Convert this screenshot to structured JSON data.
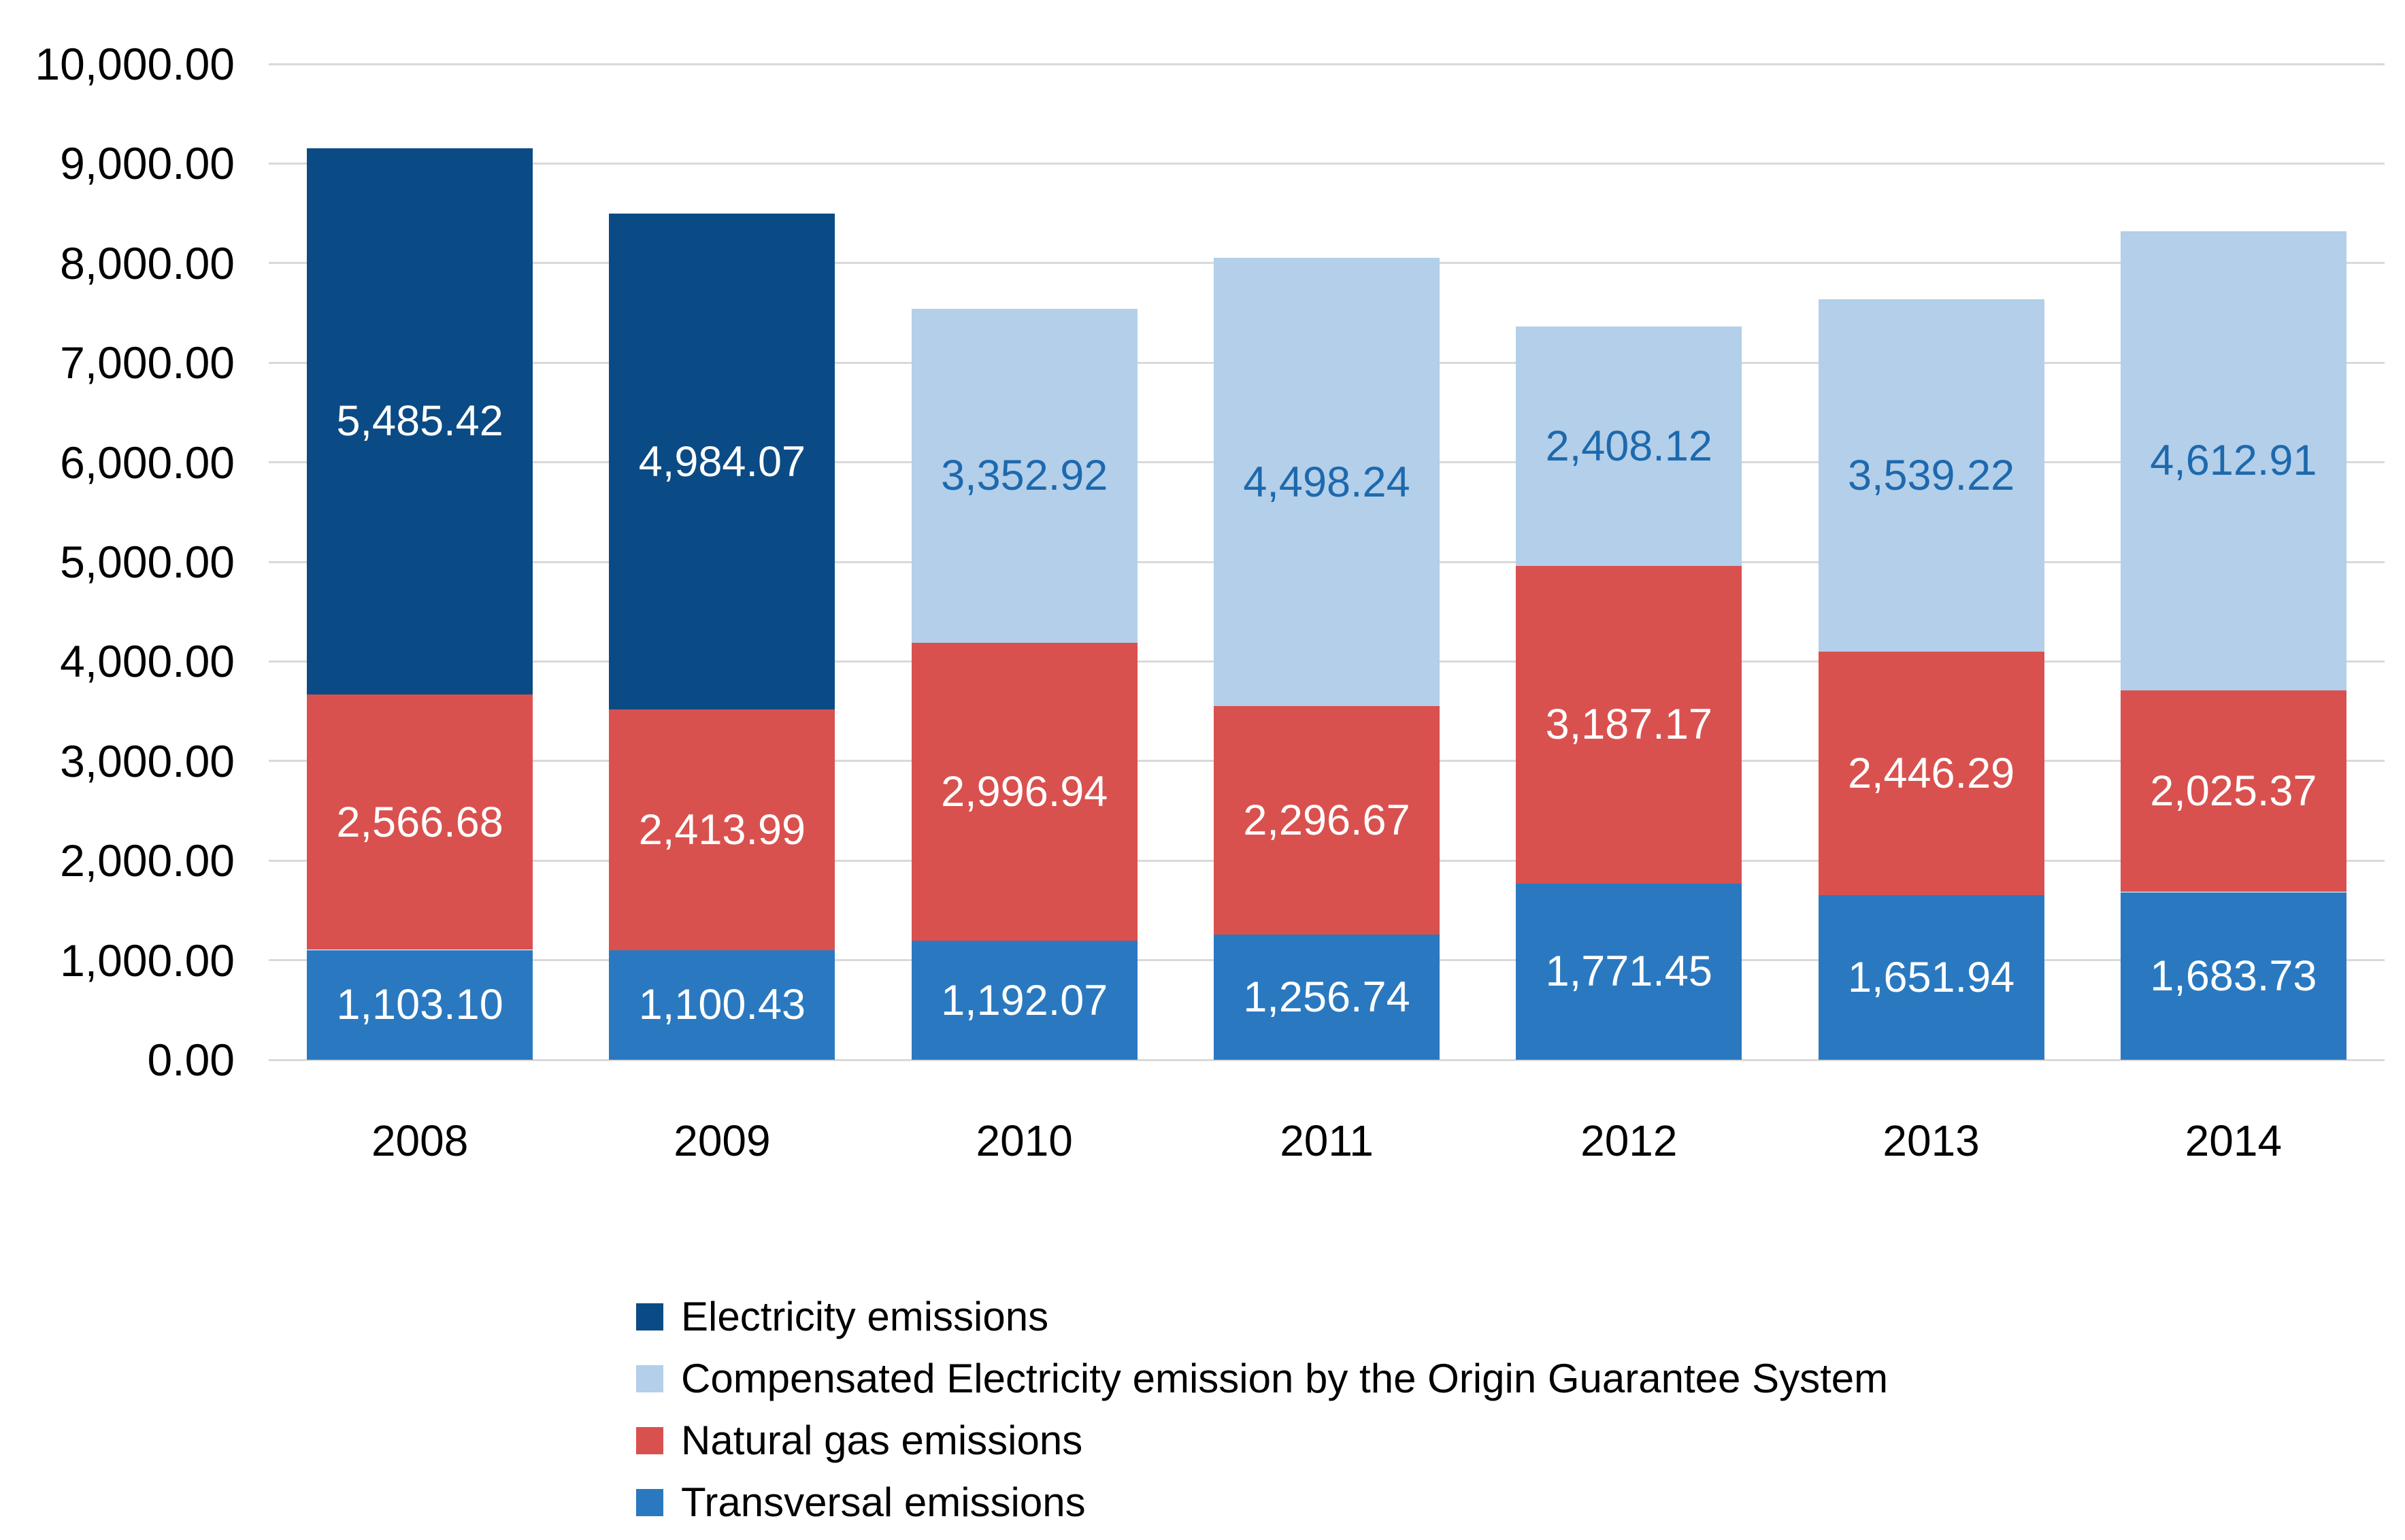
{
  "chart_data": {
    "type": "bar",
    "stacked": true,
    "categories": [
      "2008",
      "2009",
      "2010",
      "2011",
      "2012",
      "2013",
      "2014"
    ],
    "series": [
      {
        "key": "electricity",
        "name": "Electricity emissions",
        "color": "#0B4B85",
        "label_color": "#FFFFFF",
        "values": [
          5485.42,
          4984.07,
          0,
          0,
          0,
          0,
          0
        ],
        "labels": [
          "5,485.42",
          "4,984.07",
          "",
          "",
          "",
          "",
          ""
        ]
      },
      {
        "key": "compensated",
        "name": "Compensated Electricity emission by the Origin Guarantee System",
        "color": "#B3CFE9",
        "label_color": "#1D69AE",
        "values": [
          0,
          0,
          3352.92,
          4498.24,
          2408.12,
          3539.22,
          4612.91
        ],
        "labels": [
          "",
          "",
          "3,352.92",
          "4,498.24",
          "2,408.12",
          "3,539.22",
          "4,612.91"
        ]
      },
      {
        "key": "natural-gas",
        "name": "Natural gas emissions",
        "color": "#D9514E",
        "label_color": "#FFFFFF",
        "values": [
          2566.68,
          2413.99,
          2996.94,
          2296.67,
          3187.17,
          2446.29,
          2025.37
        ],
        "labels": [
          "2,566.68",
          "2,413.99",
          "2,996.94",
          "2,296.67",
          "3,187.17",
          "2,446.29",
          "2,025.37"
        ]
      },
      {
        "key": "transversal",
        "name": "Transversal emissions",
        "color": "#2A79C0",
        "label_color": "#FFFFFF",
        "values": [
          1103.1,
          1100.43,
          1192.07,
          1256.74,
          1771.45,
          1651.94,
          1683.73
        ],
        "labels": [
          "1,103.10",
          "1,100.43",
          "1,192.07",
          "1,256.74",
          "1,771.45",
          "1,651.94",
          "1,683.73"
        ]
      }
    ],
    "stack_order": [
      "transversal",
      "natural-gas",
      "electricity",
      "compensated"
    ],
    "y_axis": {
      "min": 0,
      "max": 10000,
      "step": 1000,
      "tick_labels": [
        "0.00",
        "1,000.00",
        "2,000.00",
        "3,000.00",
        "4,000.00",
        "5,000.00",
        "6,000.00",
        "7,000.00",
        "8,000.00",
        "9,000.00",
        "10,000.00"
      ]
    },
    "grid": true,
    "gridline_color": "#D9D9D9",
    "legend_position": "bottom-left"
  }
}
